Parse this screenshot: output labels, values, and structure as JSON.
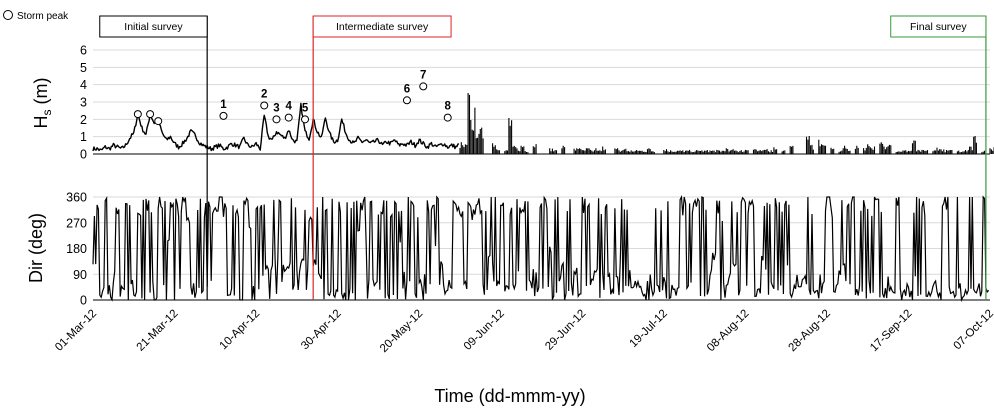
{
  "chart_data": [
    {
      "panel": "top",
      "type": "line",
      "ylabel": "Hs (m)",
      "ylabel_main": "H",
      "ylabel_sub": "s",
      "ylabel_unit": " (m)",
      "ylim": [
        0,
        6
      ],
      "yticks": [
        "0",
        "1",
        "2",
        "3",
        "4",
        "5",
        "6"
      ],
      "xlim": [
        "2012-03-01",
        "2012-10-07"
      ],
      "grid": true,
      "legend": {
        "label": "Storm peak",
        "position": "top-left"
      },
      "storm_peaks": [
        {
          "label": "",
          "x": "2012-03-12",
          "y": 2.3
        },
        {
          "label": "",
          "x": "2012-03-15",
          "y": 2.3
        },
        {
          "label": "",
          "x": "2012-03-17",
          "y": 1.9
        },
        {
          "label": "1",
          "x": "2012-04-02",
          "y": 2.2
        },
        {
          "label": "2",
          "x": "2012-04-12",
          "y": 2.8
        },
        {
          "label": "3",
          "x": "2012-04-15",
          "y": 2.0
        },
        {
          "label": "4",
          "x": "2012-04-18",
          "y": 2.1
        },
        {
          "label": "5",
          "x": "2012-04-22",
          "y": 2.0
        },
        {
          "label": "6",
          "x": "2012-05-17",
          "y": 3.1
        },
        {
          "label": "7",
          "x": "2012-05-21",
          "y": 3.9
        },
        {
          "label": "8",
          "x": "2012-05-27",
          "y": 2.1
        }
      ],
      "series": [
        {
          "values_by_day": [
            0.3,
            0.3,
            0.2,
            0.4,
            0.3,
            0.5,
            0.4,
            0.3,
            0.5,
            0.9,
            1.2,
            2.3,
            1.5,
            1.1,
            2.3,
            1.8,
            1.9,
            1.2,
            0.8,
            1.0,
            0.6,
            0.4,
            0.6,
            0.9,
            1.3,
            1.1,
            0.7,
            0.5,
            0.4,
            0.3,
            0.4,
            0.5,
            0.3,
            0.4,
            0.6,
            0.5,
            0.4,
            0.9,
            0.5,
            0.4,
            0.6,
            0.3,
            2.2,
            1.0,
            0.8,
            1.3,
            1.1,
            0.9,
            1.4,
            0.8,
            0.7,
            2.8,
            1.3,
            0.9,
            2.0,
            1.3,
            0.9,
            2.1,
            1.2,
            0.7,
            0.8,
            2.0,
            1.2,
            0.8,
            0.6,
            0.9,
            0.7,
            0.8,
            0.6,
            0.7,
            0.8,
            0.5,
            0.7,
            0.6,
            0.8,
            0.5,
            0.6,
            0.5,
            0.7,
            0.5,
            0.8,
            0.6,
            0.4,
            0.6,
            0.4,
            0.5,
            0.6,
            0.4,
            0.5,
            0.4,
            0.6,
            0.5,
            3.1,
            2.3,
            1.7,
            1.3,
            3.9,
            1.4,
            0.7,
            0.4,
            0.3,
            0.2,
            2.1,
            0.4,
            0.3,
            0.5,
            0.2,
            0.4,
            0.6,
            0.3,
            0.2,
            0.4,
            0.3,
            0.2,
            0.3,
            0.5,
            0.3,
            0.2,
            0.3,
            0.4,
            0.2,
            0.3,
            0.2,
            0.3,
            0.2,
            0.4,
            0.3,
            0.2,
            0.3,
            0.2,
            0.3,
            0.2,
            0.2,
            0.2,
            0.2,
            0.2,
            0.3,
            0.2,
            0.2,
            0.2,
            0.3,
            0.2,
            0.2,
            0.2,
            0.2,
            0.2,
            0.2,
            0.2,
            0.2,
            0.2,
            0.2,
            0.2,
            0.2,
            0.2,
            0.2,
            0.3,
            0.2,
            0.3,
            0.2,
            0.2,
            0.3,
            0.2,
            0.3,
            0.2,
            0.2,
            0.3,
            0.2,
            0.4,
            0.3,
            0.2,
            0.5,
            0.4,
            0.3,
            0.8,
            1.5,
            1.2,
            0.5,
            0.3,
            0.8,
            0.5,
            0.2,
            0.3,
            0.8,
            0.2,
            0.4,
            0.3,
            0.5,
            0.4,
            0.3,
            0.4,
            0.7,
            0.4,
            0.4,
            0.6,
            0.4,
            0.9,
            0.2,
            0.2,
            0.2,
            0.2,
            0.2,
            0.7,
            0.2,
            0.2,
            0.2,
            0.2,
            0.2,
            0.4,
            0.3,
            0.2,
            0.2,
            0.2,
            0.2,
            0.2,
            0.3,
            0.4,
            1.1,
            0.5,
            0.2,
            0.2,
            0.3,
            0.4,
            0.3,
            0.2
          ]
        }
      ]
    },
    {
      "panel": "bottom",
      "type": "line",
      "ylabel": "Dir (deg)",
      "ylim": [
        0,
        360
      ],
      "yticks": [
        "0",
        "90",
        "180",
        "270",
        "360"
      ],
      "xlabel": "Time (dd-mmm-yy)",
      "xlim": [
        "2012-03-01",
        "2012-10-07"
      ],
      "xticks": [
        "01-Mar-12",
        "21-Mar-12",
        "10-Apr-12",
        "30-Apr-12",
        "20-May-12",
        "09-Jun-12",
        "29-Jun-12",
        "19-Jul-12",
        "08-Aug-12",
        "28-Aug-12",
        "17-Sep-12",
        "07-Oct-12"
      ],
      "grid": true,
      "series": [
        {
          "values_by_day": [
            120,
            330,
            40,
            350,
            0,
            90,
            320,
            30,
            340,
            60,
            10,
            300,
            20,
            350,
            80,
            5,
            340,
            60,
            200,
            330,
            10,
            300,
            350,
            280,
            40,
            20,
            350,
            300,
            330,
            60,
            310,
            350,
            280,
            30,
            340,
            300,
            0,
            350,
            250,
            10,
            120,
            100,
            120,
            110,
            130,
            140,
            120,
            110,
            120,
            150,
            110,
            130,
            120,
            280,
            130,
            90,
            60,
            300,
            40,
            20,
            10,
            20,
            10,
            30,
            350,
            240,
            300,
            180,
            330,
            60,
            300,
            350,
            340,
            300,
            330,
            200,
            90,
            60,
            340,
            300,
            50,
            90,
            350,
            320,
            180,
            120,
            90,
            60,
            350,
            310,
            300,
            350,
            330,
            290,
            340,
            300,
            100,
            150,
            120,
            60,
            330,
            30,
            300,
            50,
            90,
            300,
            20,
            60,
            100,
            40,
            350,
            50,
            180,
            20,
            80,
            120,
            30,
            60,
            100,
            20,
            350,
            40,
            60,
            100,
            20,
            80,
            90,
            30,
            70,
            150,
            40,
            90,
            30,
            60,
            40,
            20,
            80,
            40,
            60,
            20,
            70,
            20,
            50,
            30,
            360,
            350,
            50,
            300,
            340,
            360,
            20,
            90,
            150,
            350,
            270,
            60,
            90,
            130,
            40,
            360,
            50,
            350,
            320,
            30,
            140,
            100,
            60,
            360,
            40,
            120,
            130,
            20,
            90,
            40,
            70,
            50,
            30,
            20,
            90,
            60,
            360,
            300,
            50,
            100,
            120,
            60,
            360,
            30,
            40,
            20,
            60,
            360,
            360,
            20,
            10,
            80,
            30,
            360,
            40,
            20,
            60,
            80,
            360,
            40,
            10,
            20,
            60,
            20,
            10,
            360,
            40,
            20,
            70,
            10,
            20,
            360,
            30,
            20,
            360,
            40
          ]
        }
      ]
    },
    {
      "panel": "surveys",
      "type": "annotation",
      "surveys": [
        {
          "label": "Initial survey",
          "date": "2012-03-29",
          "color": "#000000"
        },
        {
          "label": "Intermediate survey",
          "date": "2012-04-24",
          "color": "#d92626"
        },
        {
          "label": "Final survey",
          "date": "2012-10-06",
          "color": "#3a9a3a"
        }
      ]
    }
  ]
}
